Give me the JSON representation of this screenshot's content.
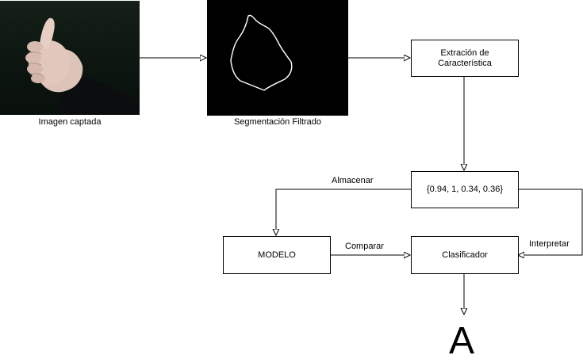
{
  "images": {
    "captured_caption": "Imagen captada",
    "segmented_caption": "Segmentación Filtrado"
  },
  "nodes": {
    "extraction": "Extración de Característica",
    "features": "{0.94, 1, 0.34, 0.36}",
    "model": "MODELO",
    "classifier": "Clasificador"
  },
  "edges": {
    "store": "Almacenar",
    "compare": "Comparar",
    "interpret": "Interpretar"
  },
  "output": {
    "letter": "A"
  }
}
